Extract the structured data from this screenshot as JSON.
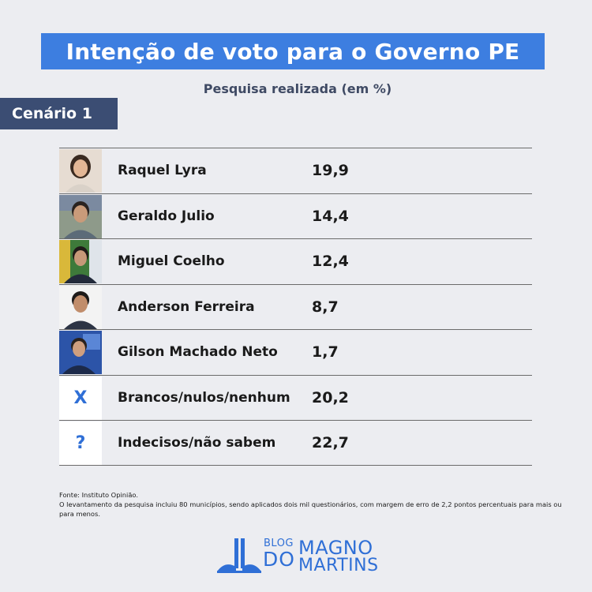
{
  "title": "Intenção de voto para o Governo PE",
  "subtitle": "Pesquisa realizada (em %)",
  "scenario": "Cenário 1",
  "rows": [
    {
      "name": "Raquel Lyra",
      "value": "19,9",
      "icon": "candidate-photo"
    },
    {
      "name": "Geraldo Julio",
      "value": "14,4",
      "icon": "candidate-photo"
    },
    {
      "name": "Miguel Coelho",
      "value": "12,4",
      "icon": "candidate-photo"
    },
    {
      "name": "Anderson Ferreira",
      "value": "8,7",
      "icon": "candidate-photo"
    },
    {
      "name": "Gilson Machado Neto",
      "value": "1,7",
      "icon": "candidate-photo"
    },
    {
      "name": "Brancos/nulos/nenhum",
      "value": "20,2",
      "icon": "x-icon",
      "glyph": "X"
    },
    {
      "name": "Indecisos/não sabem",
      "value": "22,7",
      "icon": "question-icon",
      "glyph": "?"
    }
  ],
  "footer": {
    "source": "Fonte:  Instituto Opinião.",
    "note": "O levantamento da pesquisa incluiu 80 municípios, sendo aplicados dois mil questionários, com margem de erro de 2,2 pontos percentuais para mais ou para menos."
  },
  "logo": {
    "blog": "BLOG",
    "do": "DO",
    "magno": "MAGNO",
    "martins": "MARTINS"
  },
  "colors": {
    "accent": "#3d7ee0",
    "scenario_bg": "#3b4d73",
    "background": "#ecedf1",
    "glyph": "#2f6fd6"
  },
  "chart_data": {
    "type": "table",
    "title": "Intenção de voto para o Governo PE",
    "subtitle": "Pesquisa realizada (em %)",
    "categories": [
      "Raquel Lyra",
      "Geraldo Julio",
      "Miguel Coelho",
      "Anderson Ferreira",
      "Gilson Machado Neto",
      "Brancos/nulos/nenhum",
      "Indecisos/não sabem"
    ],
    "values": [
      19.9,
      14.4,
      12.4,
      8.7,
      1.7,
      20.2,
      22.7
    ]
  }
}
